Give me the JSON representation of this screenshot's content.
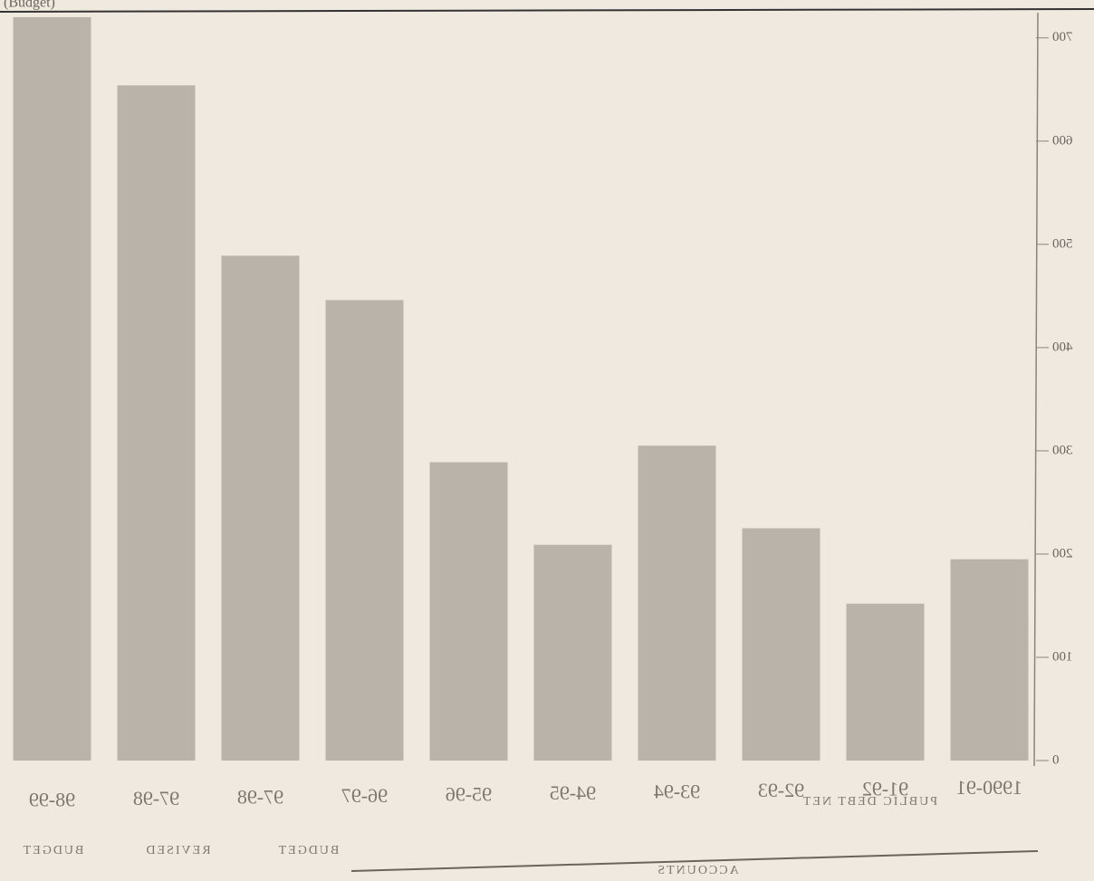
{
  "chart_data": {
    "type": "bar",
    "title": "(Budget)",
    "categories": [
      "1990-91",
      "91-92",
      "92-93",
      "93-94",
      "94-95",
      "95-96",
      "96-97",
      "97-98",
      "97-98",
      "98-99"
    ],
    "values": [
      195,
      152,
      225,
      305,
      209,
      289,
      446,
      489,
      654,
      720
    ],
    "color": "#bab3aa",
    "ylim": [
      0,
      720
    ],
    "yticks": [
      0,
      100,
      200,
      300,
      400,
      500,
      600,
      700
    ],
    "grid": false,
    "annotations": [
      "PUBLIC DEBT NET",
      "ACCOUNTS",
      "BUDGET",
      "REVISED",
      "BUDGET"
    ]
  }
}
